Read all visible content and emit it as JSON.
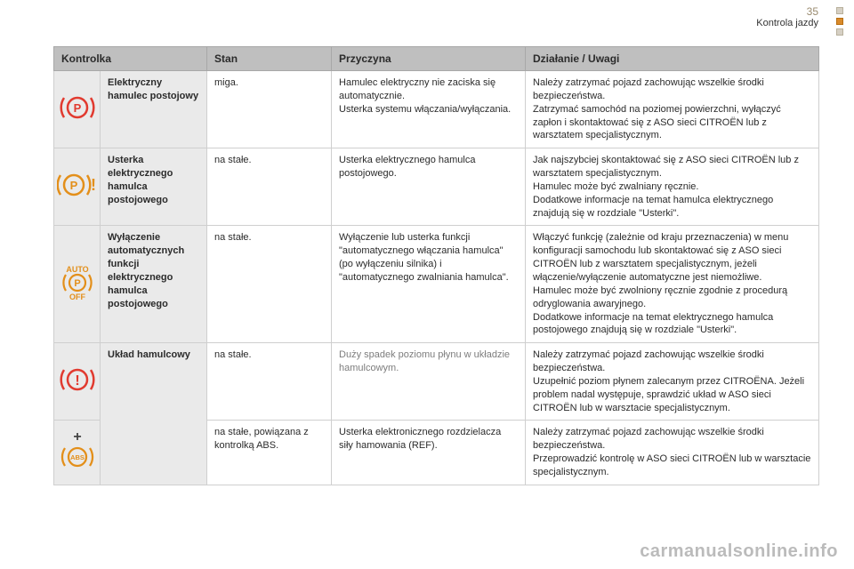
{
  "header": {
    "page_number": "35",
    "section": "Kontrola jazdy"
  },
  "colors": {
    "header_bg": "#bfbfbf",
    "name_bg": "#eaeaea",
    "border": "#cfcfcf",
    "icon_red": "#e13a2f",
    "icon_orange": "#e38f1a",
    "watermark": "#bbbbbb"
  },
  "columns": {
    "kontrolka": "Kontrolka",
    "stan": "Stan",
    "przyczyna": "Przyczyna",
    "dzialanie": "Działanie / Uwagi"
  },
  "rows": [
    {
      "icon": "p-circle-red",
      "name": "Elektryczny hamulec postojowy",
      "state": "miga.",
      "cause": "Hamulec elektryczny nie zaciska się automatycznie.\nUsterka systemu włączania/wyłączania.",
      "action": "Należy zatrzymać pojazd zachowując wszelkie środki bezpieczeństwa.\nZatrzymać samochód na poziomej powierzchni, wyłączyć zapłon i skontaktować się z ASO sieci CITROËN lub z warsztatem specjalistycznym."
    },
    {
      "icon": "p-circle-orange-exclaim",
      "name": "Usterka elektrycznego hamulca postojowego",
      "state": "na stałe.",
      "cause": "Usterka elektrycznego hamulca postojowego.",
      "action": "Jak najszybciej skontaktować się z ASO sieci CITROËN lub z warsztatem specjalistycznym.\nHamulec może być zwalniany ręcznie.\nDodatkowe informacje na temat hamulca elektrycznego znajdują się w rozdziale \"Usterki\"."
    },
    {
      "icon": "auto-p-off",
      "name": "Wyłączenie automatycznych funkcji elektrycznego hamulca postojowego",
      "state": "na stałe.",
      "cause": "Wyłączenie lub usterka funkcji \"automatycznego włączania hamulca\" (po wyłączeniu silnika) i \"automatycznego zwalniania hamulca\".",
      "action": "Włączyć funkcję (zależnie od kraju przeznaczenia) w menu konfiguracji samochodu lub skontaktować się z ASO sieci CITROËN lub z warsztatem specjalistycznym, jeżeli włączenie/wyłączenie automatyczne jest niemożliwe.\nHamulec może być zwolniony ręcznie zgodnie z procedurą odryglowania awaryjnego.\nDodatkowe informacje na temat elektrycznego hamulca postojowego znajdują się w rozdziale \"Usterki\"."
    },
    {
      "icon": "brake-exclaim-red",
      "name": "Układ hamulcowy",
      "state": "na stałe.",
      "cause": "Duży spadek poziomu płynu w układzie hamulcowym.",
      "action": "Należy zatrzymać pojazd zachowując wszelkie środki bezpieczeństwa.\nUzupełnić poziom płynem zalecanym przez CITROËNA. Jeżeli problem nadal występuje, sprawdzić układ w ASO sieci CITROËN lub w warsztacie specjalistycznym."
    },
    {
      "icon": "plus-abs",
      "name": "",
      "state": "na stałe, powiązana z kontrolką ABS.",
      "cause": "Usterka elektronicznego rozdzielacza siły hamowania (REF).",
      "action": "Należy zatrzymać pojazd zachowując wszelkie środki bezpieczeństwa.\nPrzeprowadzić kontrolę w ASO sieci CITROËN lub w warsztacie specjalistycznym."
    }
  ],
  "watermark": "carmanualsonline.info"
}
